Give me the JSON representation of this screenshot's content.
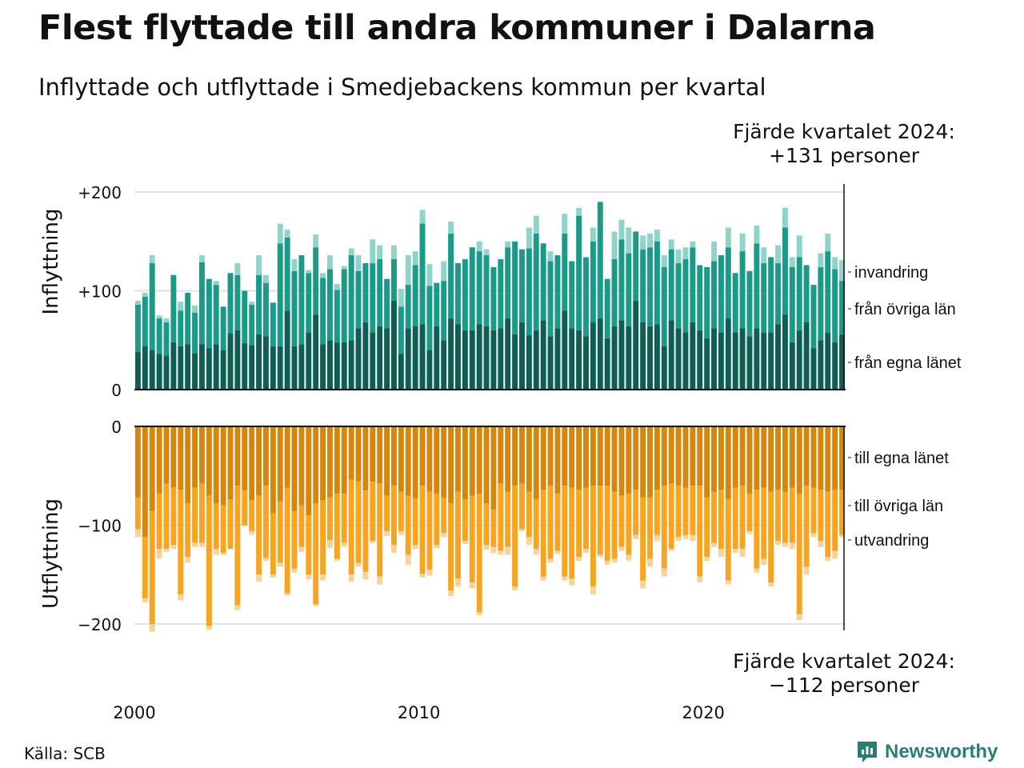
{
  "title": "Flest flyttade till andra kommuner i Dalarna",
  "subtitle": "Inflyttade och utflyttade i Smedjebackens kommun per kvartal",
  "note_top": {
    "line1": "Fjärde kvartalet 2024:",
    "line2": "+131 personer"
  },
  "note_bottom": {
    "line1": "Fjärde kvartalet 2024:",
    "line2": "−112 personer"
  },
  "source": "Källa: SCB",
  "logo": {
    "text": "Newsworthy",
    "icon": "newsworthy-logo-icon"
  },
  "colors": {
    "in_local": "#0e5e55",
    "in_other": "#1a9a88",
    "in_imm": "#8fd4c8",
    "out_local": "#d4870f",
    "out_other": "#f7a521",
    "out_emig": "#f6d39a",
    "grid": "#e2e2e2",
    "axis": "#111111"
  },
  "chart_data": [
    {
      "type": "bar",
      "stacked": true,
      "ylabel": "Inflyttning",
      "ylim": [
        0,
        200
      ],
      "yticks": [
        {
          "value": 0,
          "label": "0"
        },
        {
          "value": 100,
          "label": "+100"
        },
        {
          "value": 200,
          "label": "+200"
        }
      ],
      "series_names": [
        "från egna länet",
        "från övriga län",
        "invandring"
      ],
      "series_order_note": "stack order bottom to top: från egna länet, från övriga län, invandring",
      "grid": true
    },
    {
      "type": "bar",
      "stacked": true,
      "ylabel": "Utflyttning",
      "ylim": [
        -200,
        0
      ],
      "yticks": [
        {
          "value": 0,
          "label": "0"
        },
        {
          "value": -100,
          "label": "−100"
        },
        {
          "value": -200,
          "label": "−200"
        }
      ],
      "series_names": [
        "till egna länet",
        "till övriga län",
        "utvandring"
      ],
      "grid": true
    }
  ],
  "x_axis": {
    "start_year": 2000,
    "end_year": 2024,
    "tick_labels": [
      "2000",
      "2010",
      "2020"
    ]
  },
  "quarters": [
    {
      "q": "2000Q1",
      "in": [
        38,
        48,
        4
      ],
      "out": [
        72,
        32,
        8
      ]
    },
    {
      "q": "2000Q2",
      "in": [
        44,
        50,
        4
      ],
      "out": [
        112,
        62,
        4
      ]
    },
    {
      "q": "2000Q3",
      "in": [
        40,
        88,
        8
      ],
      "out": [
        86,
        114,
        8
      ]
    },
    {
      "q": "2000Q4",
      "in": [
        36,
        36,
        3
      ],
      "out": [
        68,
        56,
        10
      ]
    },
    {
      "q": "2001Q1",
      "in": [
        34,
        34,
        4
      ],
      "out": [
        58,
        66,
        3
      ]
    },
    {
      "q": "2001Q2",
      "in": [
        48,
        68,
        0
      ],
      "out": [
        62,
        58,
        4
      ]
    },
    {
      "q": "2001Q3",
      "in": [
        44,
        36,
        9
      ],
      "out": [
        64,
        106,
        6
      ]
    },
    {
      "q": "2001Q4",
      "in": [
        46,
        52,
        0
      ],
      "out": [
        78,
        54,
        6
      ]
    },
    {
      "q": "2002Q1",
      "in": [
        37,
        41,
        7
      ],
      "out": [
        62,
        56,
        4
      ]
    },
    {
      "q": "2002Q2",
      "in": [
        46,
        83,
        7
      ],
      "out": [
        58,
        60,
        4
      ]
    },
    {
      "q": "2002Q3",
      "in": [
        42,
        70,
        0
      ],
      "out": [
        70,
        132,
        4
      ]
    },
    {
      "q": "2002Q4",
      "in": [
        46,
        60,
        4
      ],
      "out": [
        78,
        46,
        6
      ]
    },
    {
      "q": "2003Q1",
      "in": [
        40,
        44,
        0
      ],
      "out": [
        80,
        48,
        2
      ]
    },
    {
      "q": "2003Q2",
      "in": [
        57,
        61,
        0
      ],
      "out": [
        74,
        50,
        0
      ]
    },
    {
      "q": "2003Q3",
      "in": [
        60,
        56,
        12
      ],
      "out": [
        60,
        121,
        5
      ]
    },
    {
      "q": "2003Q4",
      "in": [
        47,
        53,
        0
      ],
      "out": [
        65,
        35,
        1
      ]
    },
    {
      "q": "2004Q1",
      "in": [
        45,
        41,
        3
      ],
      "out": [
        75,
        31,
        4
      ]
    },
    {
      "q": "2004Q2",
      "in": [
        56,
        60,
        20
      ],
      "out": [
        70,
        80,
        7
      ]
    },
    {
      "q": "2004Q3",
      "in": [
        54,
        54,
        8
      ],
      "out": [
        60,
        73,
        3
      ]
    },
    {
      "q": "2004Q4",
      "in": [
        44,
        44,
        0
      ],
      "out": [
        88,
        62,
        3
      ]
    },
    {
      "q": "2005Q1",
      "in": [
        44,
        104,
        20
      ],
      "out": [
        76,
        62,
        4
      ]
    },
    {
      "q": "2005Q2",
      "in": [
        80,
        74,
        8
      ],
      "out": [
        62,
        107,
        2
      ]
    },
    {
      "q": "2005Q3",
      "in": [
        44,
        76,
        12
      ],
      "out": [
        86,
        58,
        4
      ]
    },
    {
      "q": "2005Q4",
      "in": [
        46,
        90,
        0
      ],
      "out": [
        80,
        42,
        5
      ]
    },
    {
      "q": "2006Q1",
      "in": [
        58,
        60,
        3
      ],
      "out": [
        90,
        60,
        5
      ]
    },
    {
      "q": "2006Q2",
      "in": [
        76,
        68,
        13
      ],
      "out": [
        78,
        102,
        2
      ]
    },
    {
      "q": "2006Q3",
      "in": [
        46,
        67,
        5
      ],
      "out": [
        75,
        75,
        6
      ]
    },
    {
      "q": "2006Q4",
      "in": [
        50,
        72,
        14
      ],
      "out": [
        72,
        43,
        8
      ]
    },
    {
      "q": "2007Q1",
      "in": [
        48,
        53,
        6
      ],
      "out": [
        68,
        66,
        2
      ]
    },
    {
      "q": "2007Q2",
      "in": [
        48,
        74,
        3
      ],
      "out": [
        68,
        50,
        4
      ]
    },
    {
      "q": "2007Q3",
      "in": [
        50,
        86,
        7
      ],
      "out": [
        54,
        96,
        7
      ]
    },
    {
      "q": "2007Q4",
      "in": [
        62,
        58,
        16
      ],
      "out": [
        56,
        82,
        4
      ]
    },
    {
      "q": "2008Q1",
      "in": [
        68,
        60,
        0
      ],
      "out": [
        65,
        82,
        8
      ]
    },
    {
      "q": "2008Q2",
      "in": [
        58,
        70,
        24
      ],
      "out": [
        56,
        60,
        2
      ]
    },
    {
      "q": "2008Q3",
      "in": [
        64,
        68,
        14
      ],
      "out": [
        58,
        94,
        8
      ]
    },
    {
      "q": "2008Q4",
      "in": [
        62,
        50,
        0
      ],
      "out": [
        70,
        36,
        5
      ]
    },
    {
      "q": "2009Q1",
      "in": [
        90,
        42,
        14
      ],
      "out": [
        60,
        60,
        8
      ]
    },
    {
      "q": "2009Q2",
      "in": [
        36,
        48,
        18
      ],
      "out": [
        66,
        40,
        4
      ]
    },
    {
      "q": "2009Q3",
      "in": [
        62,
        44,
        30
      ],
      "out": [
        70,
        60,
        10
      ]
    },
    {
      "q": "2009Q4",
      "in": [
        64,
        62,
        14
      ],
      "out": [
        73,
        47,
        4
      ]
    },
    {
      "q": "2010Q1",
      "in": [
        66,
        102,
        14
      ],
      "out": [
        60,
        89,
        4
      ]
    },
    {
      "q": "2010Q2",
      "in": [
        40,
        65,
        22
      ],
      "out": [
        66,
        79,
        6
      ]
    },
    {
      "q": "2010Q3",
      "in": [
        64,
        44,
        0
      ],
      "out": [
        68,
        52,
        3
      ]
    },
    {
      "q": "2010Q4",
      "in": [
        50,
        60,
        20
      ],
      "out": [
        72,
        36,
        4
      ]
    },
    {
      "q": "2011Q1",
      "in": [
        72,
        86,
        12
      ],
      "out": [
        78,
        88,
        6
      ]
    },
    {
      "q": "2011Q2",
      "in": [
        66,
        62,
        0
      ],
      "out": [
        66,
        88,
        8
      ]
    },
    {
      "q": "2011Q3",
      "in": [
        60,
        72,
        0
      ],
      "out": [
        74,
        42,
        3
      ]
    },
    {
      "q": "2011Q4",
      "in": [
        60,
        84,
        0
      ],
      "out": [
        70,
        88,
        6
      ]
    },
    {
      "q": "2012Q1",
      "in": [
        66,
        74,
        10
      ],
      "out": [
        68,
        120,
        3
      ]
    },
    {
      "q": "2012Q2",
      "in": [
        64,
        72,
        6
      ],
      "out": [
        78,
        42,
        5
      ]
    },
    {
      "q": "2012Q3",
      "in": [
        60,
        64,
        0
      ],
      "out": [
        84,
        38,
        6
      ]
    },
    {
      "q": "2012Q4",
      "in": [
        62,
        70,
        0
      ],
      "out": [
        58,
        68,
        4
      ]
    },
    {
      "q": "2013Q1",
      "in": [
        72,
        72,
        6
      ],
      "out": [
        66,
        56,
        8
      ]
    },
    {
      "q": "2013Q2",
      "in": [
        56,
        94,
        0
      ],
      "out": [
        60,
        102,
        4
      ]
    },
    {
      "q": "2013Q3",
      "in": [
        68,
        74,
        0
      ],
      "out": [
        58,
        46,
        2
      ]
    },
    {
      "q": "2013Q4",
      "in": [
        55,
        88,
        21
      ],
      "out": [
        66,
        46,
        8
      ]
    },
    {
      "q": "2014Q1",
      "in": [
        60,
        98,
        18
      ],
      "out": [
        74,
        50,
        6
      ]
    },
    {
      "q": "2014Q2",
      "in": [
        70,
        78,
        0
      ],
      "out": [
        64,
        88,
        4
      ]
    },
    {
      "q": "2014Q3",
      "in": [
        54,
        76,
        10
      ],
      "out": [
        60,
        74,
        4
      ]
    },
    {
      "q": "2014Q4",
      "in": [
        62,
        74,
        0
      ],
      "out": [
        68,
        58,
        3
      ]
    },
    {
      "q": "2015Q1",
      "in": [
        80,
        78,
        20
      ],
      "out": [
        60,
        92,
        4
      ]
    },
    {
      "q": "2015Q2",
      "in": [
        62,
        68,
        0
      ],
      "out": [
        62,
        92,
        7
      ]
    },
    {
      "q": "2015Q3",
      "in": [
        60,
        116,
        8
      ],
      "out": [
        64,
        68,
        4
      ]
    },
    {
      "q": "2015Q4",
      "in": [
        54,
        80,
        0
      ],
      "out": [
        62,
        62,
        4
      ]
    },
    {
      "q": "2016Q1",
      "in": [
        68,
        82,
        14
      ],
      "out": [
        60,
        102,
        8
      ]
    },
    {
      "q": "2016Q2",
      "in": [
        72,
        118,
        0
      ],
      "out": [
        60,
        70,
        2
      ]
    },
    {
      "q": "2016Q3",
      "in": [
        52,
        60,
        0
      ],
      "out": [
        60,
        76,
        4
      ]
    },
    {
      "q": "2016Q4",
      "in": [
        64,
        68,
        28
      ],
      "out": [
        66,
        68,
        4
      ]
    },
    {
      "q": "2017Q1",
      "in": [
        70,
        82,
        20
      ],
      "out": [
        70,
        52,
        4
      ]
    },
    {
      "q": "2017Q2",
      "in": [
        64,
        74,
        26
      ],
      "out": [
        68,
        62,
        6
      ]
    },
    {
      "q": "2017Q3",
      "in": [
        90,
        70,
        0
      ],
      "out": [
        64,
        46,
        4
      ]
    },
    {
      "q": "2017Q4",
      "in": [
        68,
        74,
        14
      ],
      "out": [
        72,
        84,
        8
      ]
    },
    {
      "q": "2018Q1",
      "in": [
        64,
        80,
        14
      ],
      "out": [
        72,
        62,
        8
      ]
    },
    {
      "q": "2018Q2",
      "in": [
        66,
        84,
        12
      ],
      "out": [
        64,
        46,
        6
      ]
    },
    {
      "q": "2018Q3",
      "in": [
        44,
        80,
        12
      ],
      "out": [
        60,
        84,
        8
      ]
    },
    {
      "q": "2018Q4",
      "in": [
        70,
        72,
        10
      ],
      "out": [
        58,
        66,
        2
      ]
    },
    {
      "q": "2019Q1",
      "in": [
        62,
        66,
        14
      ],
      "out": [
        60,
        52,
        4
      ]
    },
    {
      "q": "2019Q2",
      "in": [
        58,
        74,
        12
      ],
      "out": [
        62,
        48,
        4
      ]
    },
    {
      "q": "2019Q3",
      "in": [
        68,
        76,
        6
      ],
      "out": [
        60,
        50,
        6
      ]
    },
    {
      "q": "2019Q4",
      "in": [
        60,
        66,
        0
      ],
      "out": [
        60,
        92,
        6
      ]
    },
    {
      "q": "2020Q1",
      "in": [
        52,
        72,
        0
      ],
      "out": [
        72,
        60,
        4
      ]
    },
    {
      "q": "2020Q2",
      "in": [
        62,
        68,
        20
      ],
      "out": [
        66,
        52,
        4
      ]
    },
    {
      "q": "2020Q3",
      "in": [
        58,
        78,
        0
      ],
      "out": [
        64,
        60,
        8
      ]
    },
    {
      "q": "2020Q4",
      "in": [
        72,
        72,
        20
      ],
      "out": [
        74,
        82,
        4
      ]
    },
    {
      "q": "2021Q1",
      "in": [
        58,
        60,
        0
      ],
      "out": [
        62,
        62,
        4
      ]
    },
    {
      "q": "2021Q2",
      "in": [
        62,
        78,
        18
      ],
      "out": [
        60,
        64,
        8
      ]
    },
    {
      "q": "2021Q3",
      "in": [
        54,
        66,
        0
      ],
      "out": [
        68,
        38,
        3
      ]
    },
    {
      "q": "2021Q4",
      "in": [
        62,
        86,
        18
      ],
      "out": [
        64,
        80,
        4
      ]
    },
    {
      "q": "2022Q1",
      "in": [
        58,
        70,
        16
      ],
      "out": [
        62,
        72,
        6
      ]
    },
    {
      "q": "2022Q2",
      "in": [
        58,
        76,
        0
      ],
      "out": [
        66,
        92,
        4
      ]
    },
    {
      "q": "2022Q3",
      "in": [
        66,
        62,
        18
      ],
      "out": [
        64,
        52,
        4
      ]
    },
    {
      "q": "2022Q4",
      "in": [
        76,
        88,
        20
      ],
      "out": [
        66,
        52,
        4
      ]
    },
    {
      "q": "2023Q1",
      "in": [
        48,
        76,
        10
      ],
      "out": [
        62,
        56,
        6
      ]
    },
    {
      "q": "2023Q2",
      "in": [
        60,
        74,
        22
      ],
      "out": [
        68,
        122,
        6
      ]
    },
    {
      "q": "2023Q3",
      "in": [
        68,
        58,
        0
      ],
      "out": [
        60,
        82,
        8
      ]
    },
    {
      "q": "2023Q4",
      "in": [
        42,
        64,
        0
      ],
      "out": [
        62,
        46,
        4
      ]
    },
    {
      "q": "2024Q1",
      "in": [
        50,
        74,
        14
      ],
      "out": [
        64,
        52,
        6
      ]
    },
    {
      "q": "2024Q2",
      "in": [
        58,
        82,
        18
      ],
      "out": [
        66,
        66,
        4
      ]
    },
    {
      "q": "2024Q3",
      "in": [
        48,
        74,
        12
      ],
      "out": [
        64,
        62,
        8
      ]
    },
    {
      "q": "2024Q4",
      "in": [
        56,
        54,
        21
      ],
      "out": [
        64,
        46,
        2
      ]
    }
  ]
}
